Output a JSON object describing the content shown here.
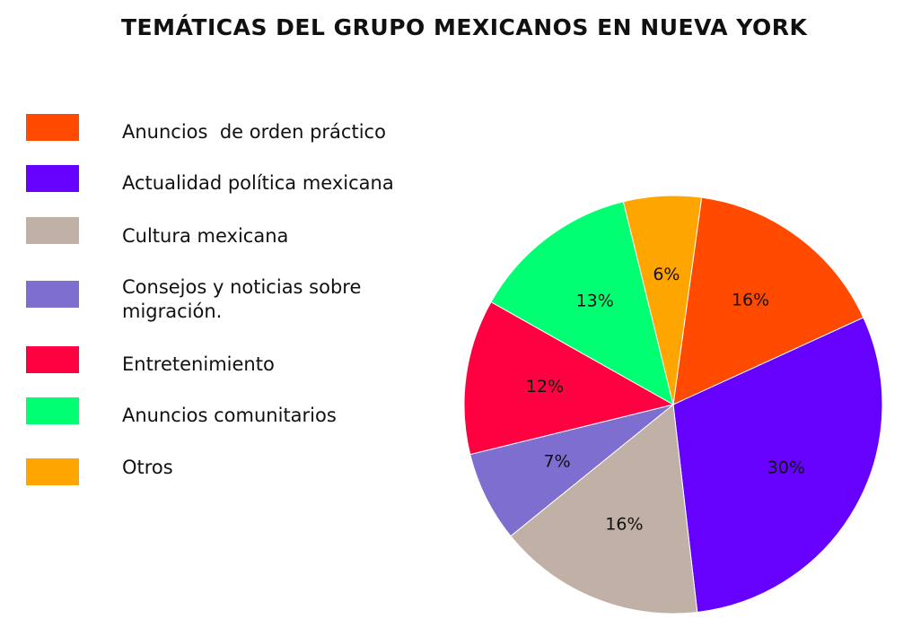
{
  "chart_data": {
    "type": "pie",
    "title": "TEMÁTICAS DEL GRUPO MEXICANOS EN NUEVA YORK",
    "categories": [
      "Anuncios  de orden práctico",
      "Actualidad política mexicana",
      "Cultura mexicana",
      "Consejos y noticias sobre migración.",
      "Entretenimiento",
      "Anuncios comunitarios",
      "Otros"
    ],
    "legend_lines": [
      [
        "Anuncios  de orden práctico"
      ],
      [
        "Actualidad política mexicana"
      ],
      [
        "Cultura mexicana"
      ],
      [
        "Consejos y noticias sobre",
        "migración."
      ],
      [
        "Entretenimiento"
      ],
      [
        "Anuncios comunitarios"
      ],
      [
        "Otros"
      ]
    ],
    "values": [
      16,
      30,
      16,
      7,
      12,
      13,
      6
    ],
    "data_labels": [
      "16%",
      "30%",
      "16%",
      "7%",
      "12%",
      "13%",
      "6%"
    ],
    "colors": [
      "#ff4a00",
      "#6600ff",
      "#c0b0a6",
      "#7d6ed0",
      "#ff0040",
      "#00ff73",
      "#ffa500"
    ],
    "legend_position": "left"
  }
}
